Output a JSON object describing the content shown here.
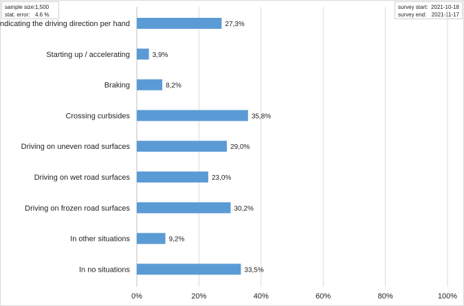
{
  "info_left": {
    "sample_size_label": "sample size:",
    "sample_size_value": "1,500",
    "stat_error_label": "stat. error:",
    "stat_error_value": "4.6 %"
  },
  "info_right": {
    "survey_start_label": "survey start:",
    "survey_start_value": "2021-10-18",
    "survey_end_label": "survey end:",
    "survey_end_value": "2021-11-17"
  },
  "chart_data": {
    "type": "bar",
    "orientation": "horizontal",
    "title": "",
    "xlabel": "",
    "ylabel": "",
    "xlim": [
      0,
      100
    ],
    "grid": true,
    "bar_color": "#5b9bd5",
    "categories": [
      "Indicating the driving direction per hand",
      "Starting up / accelerating",
      "Braking",
      "Crossing curbsides",
      "Driving on uneven road surfaces",
      "Driving on wet road surfaces",
      "Driving on frozen road surfaces",
      "In other situations",
      "In no situations"
    ],
    "values": [
      27.3,
      3.9,
      8.2,
      35.8,
      29.0,
      23.0,
      30.2,
      9.2,
      33.5
    ],
    "value_labels": [
      "27,3%",
      "3,9%",
      "8,2%",
      "35,8%",
      "29,0%",
      "23,0%",
      "30,2%",
      "9,2%",
      "33,5%"
    ],
    "ticks": [
      0,
      20,
      40,
      60,
      80,
      100
    ],
    "tick_labels": [
      "0%",
      "20%",
      "40%",
      "60%",
      "80%",
      "100%"
    ]
  }
}
